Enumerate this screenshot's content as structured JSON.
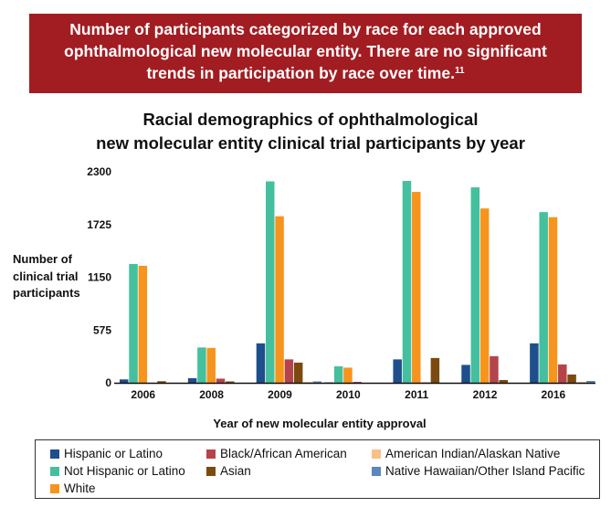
{
  "banner": {
    "lines": [
      "Number of participants categorized by race for each approved",
      "ophthalmological new molecular entity. There are no significant",
      "trends in participation by race over time."
    ],
    "footnote": "11"
  },
  "chart_data": {
    "type": "bar",
    "title": "Racial demographics of ophthalmological new molecular entity clinical trial participants by year",
    "title_lines": [
      "Racial demographics of ophthalmological",
      "new molecular entity clinical trial participants by year"
    ],
    "xlabel": "Year of new molecular entity approval",
    "ylabel": "Number of clinical trial participants",
    "ylabel_lines": [
      "Number of",
      "clinical trial",
      "participants"
    ],
    "ylim": [
      0,
      2300
    ],
    "yticks": [
      0,
      575,
      1150,
      1725,
      2300
    ],
    "grid": false,
    "legend_position": "bottom",
    "categories": [
      "2006",
      "2008",
      "2009",
      "2010",
      "2011",
      "2012",
      "2016"
    ],
    "series": [
      {
        "name": "Hispanic or Latino",
        "color": "#1f4e8c",
        "values": [
          37,
          50,
          430,
          5,
          255,
          195,
          430
        ]
      },
      {
        "name": "Not Hispanic or Latino",
        "color": "#45c09e",
        "values": [
          1295,
          385,
          2195,
          180,
          2200,
          2130,
          1860
        ]
      },
      {
        "name": "White",
        "color": "#f7941d",
        "values": [
          1275,
          380,
          1815,
          165,
          2080,
          1900,
          1805
        ]
      },
      {
        "name": "Black/African American",
        "color": "#b5444a",
        "values": [
          0,
          45,
          255,
          10,
          5,
          290,
          200
        ]
      },
      {
        "name": "Asian",
        "color": "#7b4a0e",
        "values": [
          17,
          15,
          220,
          0,
          270,
          30,
          90
        ]
      },
      {
        "name": "American Indian/Alaskan Native",
        "color": "#f9c08a",
        "values": [
          0,
          0,
          10,
          0,
          0,
          0,
          10
        ]
      },
      {
        "name": "Native Hawaiian/Other Island Pacific",
        "color": "#5b86bf",
        "values": [
          0,
          0,
          15,
          0,
          0,
          0,
          20
        ]
      }
    ]
  },
  "legend": {
    "items": [
      {
        "label": "Hispanic or Latino",
        "color": "#1f4e8c"
      },
      {
        "label": "Black/African American",
        "color": "#b5444a"
      },
      {
        "label": "American Indian/Alaskan Native",
        "color": "#f9c08a"
      },
      {
        "label": "Not Hispanic or Latino",
        "color": "#45c09e"
      },
      {
        "label": "Asian",
        "color": "#7b4a0e"
      },
      {
        "label": "Native Hawaiian/Other Island Pacific",
        "color": "#5b86bf"
      },
      {
        "label": "White",
        "color": "#f7941d"
      }
    ]
  }
}
